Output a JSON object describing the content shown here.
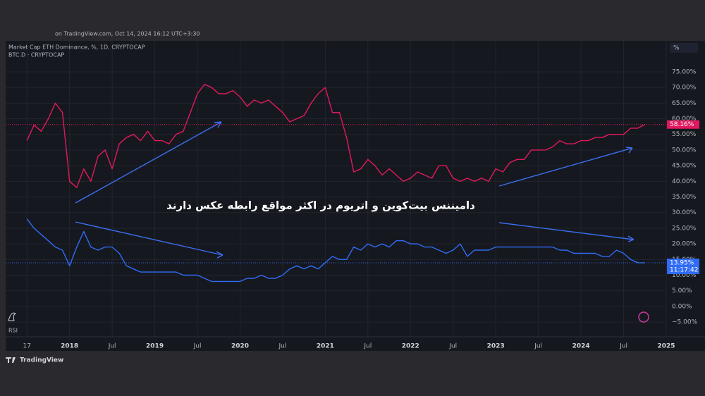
{
  "header": {
    "watermark": "on TradingView.com, Oct 14, 2024 16:12 UTC+3:30",
    "brand": "TradingView",
    "scale_button": "%",
    "indicator": "RSI"
  },
  "chart_data": {
    "type": "line",
    "annotation": "دامیننس بیت‌کوین و اتریوم در اکثر مواقع رابطه عکس دارند",
    "countdown": "11:17:42",
    "x": [
      "2017-07",
      "2017-08",
      "2017-09",
      "2017-10",
      "2017-11",
      "2017-12",
      "2018-01",
      "2018-02",
      "2018-03",
      "2018-04",
      "2018-05",
      "2018-06",
      "2018-07",
      "2018-08",
      "2018-09",
      "2018-10",
      "2018-11",
      "2018-12",
      "2019-01",
      "2019-02",
      "2019-03",
      "2019-04",
      "2019-05",
      "2019-06",
      "2019-07",
      "2019-08",
      "2019-09",
      "2019-10",
      "2019-11",
      "2019-12",
      "2020-01",
      "2020-02",
      "2020-03",
      "2020-04",
      "2020-05",
      "2020-06",
      "2020-07",
      "2020-08",
      "2020-09",
      "2020-10",
      "2020-11",
      "2020-12",
      "2021-01",
      "2021-02",
      "2021-03",
      "2021-04",
      "2021-05",
      "2021-06",
      "2021-07",
      "2021-08",
      "2021-09",
      "2021-10",
      "2021-11",
      "2021-12",
      "2022-01",
      "2022-02",
      "2022-03",
      "2022-04",
      "2022-05",
      "2022-06",
      "2022-07",
      "2022-08",
      "2022-09",
      "2022-10",
      "2022-11",
      "2022-12",
      "2023-01",
      "2023-02",
      "2023-03",
      "2023-04",
      "2023-05",
      "2023-06",
      "2023-07",
      "2023-08",
      "2023-09",
      "2023-10",
      "2023-11",
      "2023-12",
      "2024-01",
      "2024-02",
      "2024-03",
      "2024-04",
      "2024-05",
      "2024-06",
      "2024-07",
      "2024-08",
      "2024-09",
      "2024-10"
    ],
    "series": [
      {
        "name": "BTC.D · CRYPTOCAP",
        "color": "#e0195f",
        "values": [
          53,
          58,
          56,
          60,
          65,
          62,
          40,
          38,
          44,
          40,
          48,
          50,
          44,
          52,
          54,
          55,
          53,
          56,
          53,
          53,
          52,
          55,
          56,
          62,
          68,
          71,
          70,
          68,
          68,
          69,
          67,
          64,
          66,
          65,
          66,
          64,
          62,
          59,
          60,
          61,
          65,
          68,
          70,
          62,
          62,
          54,
          43,
          44,
          47,
          45,
          42,
          44,
          42,
          40,
          41,
          43,
          42,
          41,
          45,
          45,
          41,
          40,
          41,
          40,
          41,
          40,
          44,
          43,
          46,
          47,
          47,
          50,
          50,
          50,
          51,
          53,
          52,
          52,
          53,
          53,
          54,
          54,
          55,
          55,
          55,
          57,
          57,
          58.16
        ],
        "value_labels": [
          null,
          null,
          null,
          null,
          null,
          null,
          null,
          null,
          null,
          null,
          null,
          null,
          null,
          null,
          null,
          null,
          null,
          null,
          null,
          null,
          null,
          null,
          null,
          null,
          null,
          null,
          null,
          null,
          null,
          null,
          null,
          null,
          null,
          null,
          null,
          null,
          null,
          null,
          null,
          null,
          null,
          null,
          null,
          null,
          null,
          null,
          null,
          null,
          null,
          null,
          null,
          null,
          null,
          null,
          null,
          null,
          null,
          null,
          null,
          null,
          null,
          null,
          null,
          null,
          null,
          null,
          null,
          null,
          null,
          null,
          null,
          null,
          null,
          null,
          null,
          null,
          null,
          null,
          null,
          null,
          null,
          null,
          null,
          null,
          null,
          null,
          null,
          "58.16%"
        ]
      },
      {
        "name": "Market Cap ETH Dominance, %, 1D, CRYPTOCAP",
        "color": "#2f6bf5",
        "values": [
          28,
          25,
          23,
          21,
          19,
          18,
          13,
          19,
          24,
          19,
          18,
          19,
          19,
          17,
          13,
          12,
          11,
          11,
          11,
          11,
          11,
          11,
          10,
          10,
          10,
          9,
          8,
          8,
          8,
          8,
          8,
          9,
          9,
          10,
          9,
          9,
          10,
          12,
          13,
          12,
          13,
          12,
          14,
          16,
          15,
          15,
          19,
          18,
          20,
          19,
          20,
          19,
          21,
          21,
          20,
          20,
          19,
          19,
          18,
          17,
          18,
          20,
          16,
          18,
          18,
          18,
          19,
          19,
          19,
          19,
          19,
          19,
          19,
          19,
          19,
          18,
          18,
          17,
          17,
          17,
          17,
          16,
          16,
          18,
          17,
          15,
          14,
          13.95
        ],
        "value_labels": [
          null,
          null,
          null,
          null,
          null,
          null,
          null,
          null,
          null,
          null,
          null,
          null,
          null,
          null,
          null,
          null,
          null,
          null,
          null,
          null,
          null,
          null,
          null,
          null,
          null,
          null,
          null,
          null,
          null,
          null,
          null,
          null,
          null,
          null,
          null,
          null,
          null,
          null,
          null,
          null,
          null,
          null,
          null,
          null,
          null,
          null,
          null,
          null,
          null,
          null,
          null,
          null,
          null,
          null,
          null,
          null,
          null,
          null,
          null,
          null,
          null,
          null,
          null,
          null,
          null,
          null,
          null,
          null,
          null,
          null,
          null,
          null,
          null,
          null,
          null,
          null,
          null,
          null,
          null,
          null,
          null,
          null,
          null,
          null,
          null,
          null,
          null,
          "13.95%"
        ]
      }
    ],
    "xlim": [
      "2017-04",
      "2025-01"
    ],
    "xticks": [
      {
        "value": "2017-07",
        "label": "17"
      },
      {
        "value": "2018-01",
        "label": "2018"
      },
      {
        "value": "2018-07",
        "label": "Jul"
      },
      {
        "value": "2019-01",
        "label": "2019"
      },
      {
        "value": "2019-07",
        "label": "Jul"
      },
      {
        "value": "2020-01",
        "label": "2020"
      },
      {
        "value": "2020-07",
        "label": "Jul"
      },
      {
        "value": "2021-01",
        "label": "2021"
      },
      {
        "value": "2021-07",
        "label": "Jul"
      },
      {
        "value": "2022-01",
        "label": "2022"
      },
      {
        "value": "2022-07",
        "label": "Jul"
      },
      {
        "value": "2023-01",
        "label": "2023"
      },
      {
        "value": "2023-07",
        "label": "Jul"
      },
      {
        "value": "2024-01",
        "label": "2024"
      },
      {
        "value": "2024-07",
        "label": "Jul"
      },
      {
        "value": "2025-01",
        "label": "2025"
      }
    ],
    "ylim": [
      -9.7,
      84.9
    ],
    "yticks": [
      {
        "value": -5,
        "label": "−5.00%"
      },
      {
        "value": 0,
        "label": "0.00%"
      },
      {
        "value": 5,
        "label": "5.00%"
      },
      {
        "value": 10,
        "label": "10.00%"
      },
      {
        "value": 15,
        "label": "15.00%"
      },
      {
        "value": 20,
        "label": "20.00%"
      },
      {
        "value": 25,
        "label": "25.00%"
      },
      {
        "value": 30,
        "label": "30.00%"
      },
      {
        "value": 35,
        "label": "35.00%"
      },
      {
        "value": 40,
        "label": "40.00%"
      },
      {
        "value": 45,
        "label": "45.00%"
      },
      {
        "value": 50,
        "label": "50.00%"
      },
      {
        "value": 55,
        "label": "55.00%"
      },
      {
        "value": 60,
        "label": "60.00%"
      },
      {
        "value": 65,
        "label": "65.00%"
      },
      {
        "value": 70,
        "label": "70.00%"
      },
      {
        "value": 75,
        "label": "75.00%"
      }
    ],
    "grid": true
  }
}
